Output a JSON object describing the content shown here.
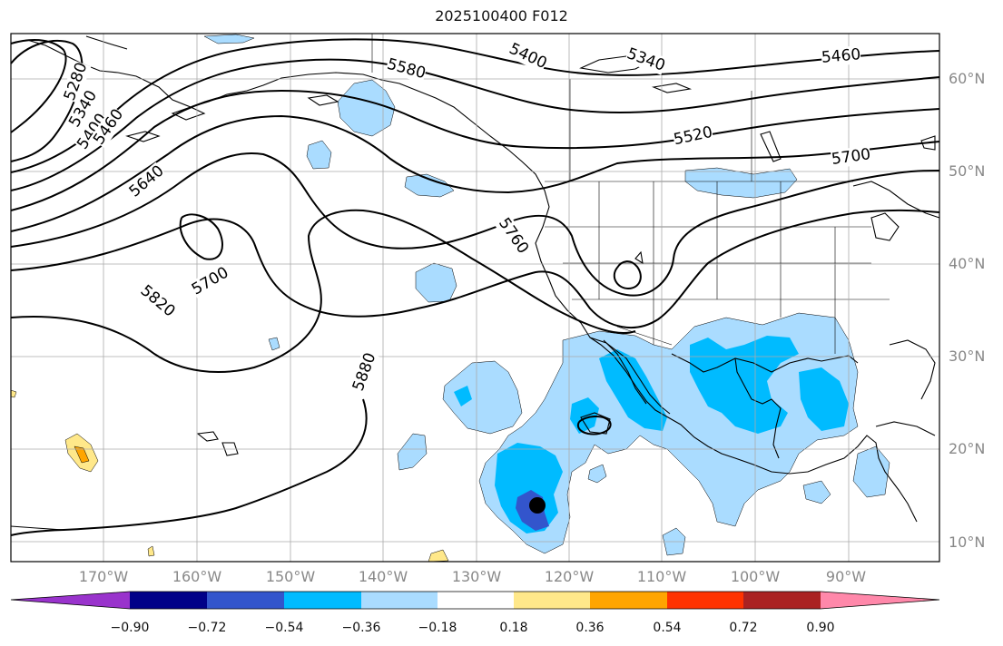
{
  "title": "2025100400 F012",
  "colors": {
    "land_outline": "#000000",
    "grid": "#aaaaaa",
    "contour": "#000000",
    "light_blue": "#aadcff",
    "mid_blue": "#00bbff",
    "deep_blue": "#3355cc",
    "yellow": "#ffe88a",
    "orange": "#ffa500",
    "storm_marker": "#000000"
  },
  "colorbar": {
    "colors": [
      "#9933cc",
      "#000088",
      "#3355cc",
      "#00bbff",
      "#aadcff",
      "#ffffff",
      "#ffe88a",
      "#ffa500",
      "#ff3300",
      "#aa2222",
      "#ff88aa"
    ],
    "ticks": [
      "−0.90",
      "−0.72",
      "−0.54",
      "−0.36",
      "−0.18",
      "0.18",
      "0.36",
      "0.54",
      "0.72",
      "0.90"
    ]
  },
  "lat_labels": [
    "60°N",
    "50°N",
    "40°N",
    "30°N",
    "20°N",
    "10°N"
  ],
  "lon_labels": [
    "170°W",
    "160°W",
    "150°W",
    "140°W",
    "130°W",
    "120°W",
    "110°W",
    "100°W",
    "90°W"
  ],
  "contour_labels": [
    "5280",
    "5340",
    "5400",
    "5460",
    "5400",
    "5340",
    "5460",
    "5580",
    "5520",
    "5700",
    "5640",
    "5700",
    "5820",
    "5760",
    "5880"
  ],
  "storm_marker": {
    "lat": 14.1,
    "lon": -122.5
  }
}
